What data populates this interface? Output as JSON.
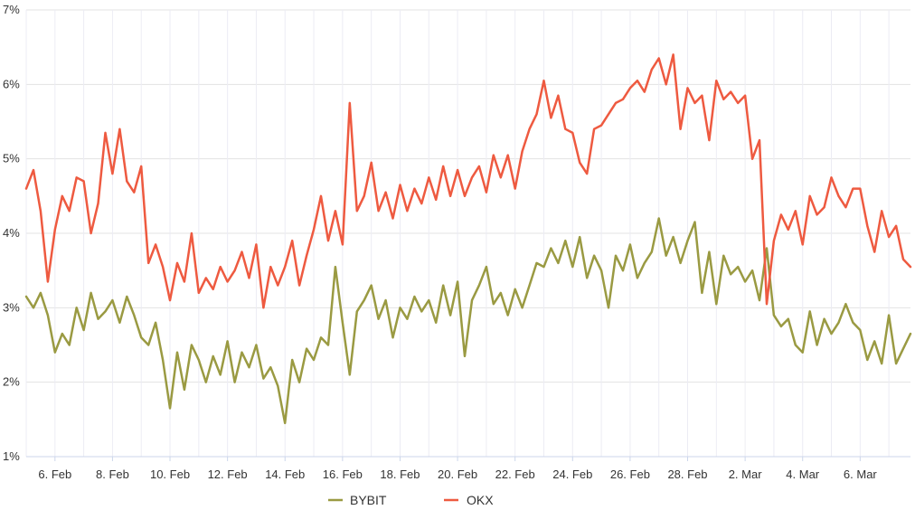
{
  "chart_data": {
    "type": "line",
    "title": "",
    "xlabel": "",
    "ylabel": "",
    "ylim": [
      1,
      7
    ],
    "y_ticks": [
      "1%",
      "2%",
      "3%",
      "4%",
      "5%",
      "6%",
      "7%"
    ],
    "x_ticks": [
      "6. Feb",
      "8. Feb",
      "10. Feb",
      "12. Feb",
      "14. Feb",
      "16. Feb",
      "18. Feb",
      "20. Feb",
      "22. Feb",
      "24. Feb",
      "26. Feb",
      "28. Feb",
      "2. Mar",
      "4. Mar",
      "6. Mar"
    ],
    "x_range": [
      "2025-02-05",
      "2025-03-07T18:00"
    ],
    "grid": "vertical and horizontal",
    "legend_position": "bottom-center",
    "series": [
      {
        "name": "BYBIT",
        "color": "#9a9a42",
        "points": [
          [
            "2025-02-05T00:00",
            3.15
          ],
          [
            "2025-02-05T06:00",
            3.0
          ],
          [
            "2025-02-05T12:00",
            3.2
          ],
          [
            "2025-02-05T18:00",
            2.9
          ],
          [
            "2025-02-06T00:00",
            2.4
          ],
          [
            "2025-02-06T06:00",
            2.65
          ],
          [
            "2025-02-06T12:00",
            2.5
          ],
          [
            "2025-02-06T18:00",
            3.0
          ],
          [
            "2025-02-07T00:00",
            2.7
          ],
          [
            "2025-02-07T06:00",
            3.2
          ],
          [
            "2025-02-07T12:00",
            2.85
          ],
          [
            "2025-02-07T18:00",
            2.95
          ],
          [
            "2025-02-08T00:00",
            3.1
          ],
          [
            "2025-02-08T06:00",
            2.8
          ],
          [
            "2025-02-08T12:00",
            3.15
          ],
          [
            "2025-02-08T18:00",
            2.9
          ],
          [
            "2025-02-09T00:00",
            2.6
          ],
          [
            "2025-02-09T06:00",
            2.5
          ],
          [
            "2025-02-09T12:00",
            2.8
          ],
          [
            "2025-02-09T18:00",
            2.3
          ],
          [
            "2025-02-10T00:00",
            1.65
          ],
          [
            "2025-02-10T06:00",
            2.4
          ],
          [
            "2025-02-10T12:00",
            1.9
          ],
          [
            "2025-02-10T18:00",
            2.5
          ],
          [
            "2025-02-11T00:00",
            2.3
          ],
          [
            "2025-02-11T06:00",
            2.0
          ],
          [
            "2025-02-11T12:00",
            2.35
          ],
          [
            "2025-02-11T18:00",
            2.1
          ],
          [
            "2025-02-12T00:00",
            2.55
          ],
          [
            "2025-02-12T06:00",
            2.0
          ],
          [
            "2025-02-12T12:00",
            2.4
          ],
          [
            "2025-02-12T18:00",
            2.2
          ],
          [
            "2025-02-13T00:00",
            2.5
          ],
          [
            "2025-02-13T06:00",
            2.05
          ],
          [
            "2025-02-13T12:00",
            2.2
          ],
          [
            "2025-02-13T18:00",
            1.95
          ],
          [
            "2025-02-14T00:00",
            1.45
          ],
          [
            "2025-02-14T06:00",
            2.3
          ],
          [
            "2025-02-14T12:00",
            2.0
          ],
          [
            "2025-02-14T18:00",
            2.45
          ],
          [
            "2025-02-15T00:00",
            2.3
          ],
          [
            "2025-02-15T06:00",
            2.6
          ],
          [
            "2025-02-15T12:00",
            2.5
          ],
          [
            "2025-02-15T18:00",
            3.55
          ],
          [
            "2025-02-16T00:00",
            2.8
          ],
          [
            "2025-02-16T06:00",
            2.1
          ],
          [
            "2025-02-16T12:00",
            2.95
          ],
          [
            "2025-02-16T18:00",
            3.1
          ],
          [
            "2025-02-17T00:00",
            3.3
          ],
          [
            "2025-02-17T06:00",
            2.85
          ],
          [
            "2025-02-17T12:00",
            3.1
          ],
          [
            "2025-02-17T18:00",
            2.6
          ],
          [
            "2025-02-18T00:00",
            3.0
          ],
          [
            "2025-02-18T06:00",
            2.85
          ],
          [
            "2025-02-18T12:00",
            3.15
          ],
          [
            "2025-02-18T18:00",
            2.95
          ],
          [
            "2025-02-19T00:00",
            3.1
          ],
          [
            "2025-02-19T06:00",
            2.8
          ],
          [
            "2025-02-19T12:00",
            3.3
          ],
          [
            "2025-02-19T18:00",
            2.9
          ],
          [
            "2025-02-20T00:00",
            3.35
          ],
          [
            "2025-02-20T06:00",
            2.35
          ],
          [
            "2025-02-20T12:00",
            3.1
          ],
          [
            "2025-02-20T18:00",
            3.3
          ],
          [
            "2025-02-21T00:00",
            3.55
          ],
          [
            "2025-02-21T06:00",
            3.05
          ],
          [
            "2025-02-21T12:00",
            3.2
          ],
          [
            "2025-02-21T18:00",
            2.9
          ],
          [
            "2025-02-22T00:00",
            3.25
          ],
          [
            "2025-02-22T06:00",
            3.0
          ],
          [
            "2025-02-22T12:00",
            3.3
          ],
          [
            "2025-02-22T18:00",
            3.6
          ],
          [
            "2025-02-23T00:00",
            3.55
          ],
          [
            "2025-02-23T06:00",
            3.8
          ],
          [
            "2025-02-23T12:00",
            3.6
          ],
          [
            "2025-02-23T18:00",
            3.9
          ],
          [
            "2025-02-24T00:00",
            3.55
          ],
          [
            "2025-02-24T06:00",
            3.95
          ],
          [
            "2025-02-24T12:00",
            3.4
          ],
          [
            "2025-02-24T18:00",
            3.7
          ],
          [
            "2025-02-25T00:00",
            3.5
          ],
          [
            "2025-02-25T06:00",
            3.0
          ],
          [
            "2025-02-25T12:00",
            3.7
          ],
          [
            "2025-02-25T18:00",
            3.5
          ],
          [
            "2025-02-26T00:00",
            3.85
          ],
          [
            "2025-02-26T06:00",
            3.4
          ],
          [
            "2025-02-26T12:00",
            3.6
          ],
          [
            "2025-02-26T18:00",
            3.75
          ],
          [
            "2025-02-27T00:00",
            4.2
          ],
          [
            "2025-02-27T06:00",
            3.7
          ],
          [
            "2025-02-27T12:00",
            3.95
          ],
          [
            "2025-02-27T18:00",
            3.6
          ],
          [
            "2025-02-28T00:00",
            3.9
          ],
          [
            "2025-02-28T06:00",
            4.15
          ],
          [
            "2025-02-28T12:00",
            3.2
          ],
          [
            "2025-02-28T18:00",
            3.75
          ],
          [
            "2025-03-01T00:00",
            3.05
          ],
          [
            "2025-03-01T06:00",
            3.7
          ],
          [
            "2025-03-01T12:00",
            3.45
          ],
          [
            "2025-03-01T18:00",
            3.55
          ],
          [
            "2025-03-02T00:00",
            3.35
          ],
          [
            "2025-03-02T06:00",
            3.5
          ],
          [
            "2025-03-02T12:00",
            3.1
          ],
          [
            "2025-03-02T18:00",
            3.8
          ],
          [
            "2025-03-03T00:00",
            2.9
          ],
          [
            "2025-03-03T06:00",
            2.75
          ],
          [
            "2025-03-03T12:00",
            2.85
          ],
          [
            "2025-03-03T18:00",
            2.5
          ],
          [
            "2025-03-04T00:00",
            2.4
          ],
          [
            "2025-03-04T06:00",
            2.95
          ],
          [
            "2025-03-04T12:00",
            2.5
          ],
          [
            "2025-03-04T18:00",
            2.85
          ],
          [
            "2025-03-05T00:00",
            2.65
          ],
          [
            "2025-03-05T06:00",
            2.8
          ],
          [
            "2025-03-05T12:00",
            3.05
          ],
          [
            "2025-03-05T18:00",
            2.8
          ],
          [
            "2025-03-06T00:00",
            2.7
          ],
          [
            "2025-03-06T06:00",
            2.3
          ],
          [
            "2025-03-06T12:00",
            2.55
          ],
          [
            "2025-03-06T18:00",
            2.25
          ],
          [
            "2025-03-07T00:00",
            2.9
          ],
          [
            "2025-03-07T06:00",
            2.25
          ],
          [
            "2025-03-07T12:00",
            2.45
          ],
          [
            "2025-03-07T18:00",
            2.65
          ]
        ]
      },
      {
        "name": "OKX",
        "color": "#ee5a40",
        "points": [
          [
            "2025-02-05T00:00",
            4.6
          ],
          [
            "2025-02-05T06:00",
            4.85
          ],
          [
            "2025-02-05T12:00",
            4.3
          ],
          [
            "2025-02-05T18:00",
            3.35
          ],
          [
            "2025-02-06T00:00",
            4.05
          ],
          [
            "2025-02-06T06:00",
            4.5
          ],
          [
            "2025-02-06T12:00",
            4.3
          ],
          [
            "2025-02-06T18:00",
            4.75
          ],
          [
            "2025-02-07T00:00",
            4.7
          ],
          [
            "2025-02-07T06:00",
            4.0
          ],
          [
            "2025-02-07T12:00",
            4.4
          ],
          [
            "2025-02-07T18:00",
            5.35
          ],
          [
            "2025-02-08T00:00",
            4.8
          ],
          [
            "2025-02-08T06:00",
            5.4
          ],
          [
            "2025-02-08T12:00",
            4.7
          ],
          [
            "2025-02-08T18:00",
            4.55
          ],
          [
            "2025-02-09T00:00",
            4.9
          ],
          [
            "2025-02-09T06:00",
            3.6
          ],
          [
            "2025-02-09T12:00",
            3.85
          ],
          [
            "2025-02-09T18:00",
            3.55
          ],
          [
            "2025-02-10T00:00",
            3.1
          ],
          [
            "2025-02-10T06:00",
            3.6
          ],
          [
            "2025-02-10T12:00",
            3.35
          ],
          [
            "2025-02-10T18:00",
            4.0
          ],
          [
            "2025-02-11T00:00",
            3.2
          ],
          [
            "2025-02-11T06:00",
            3.4
          ],
          [
            "2025-02-11T12:00",
            3.25
          ],
          [
            "2025-02-11T18:00",
            3.55
          ],
          [
            "2025-02-12T00:00",
            3.35
          ],
          [
            "2025-02-12T06:00",
            3.5
          ],
          [
            "2025-02-12T12:00",
            3.75
          ],
          [
            "2025-02-12T18:00",
            3.4
          ],
          [
            "2025-02-13T00:00",
            3.85
          ],
          [
            "2025-02-13T06:00",
            3.0
          ],
          [
            "2025-02-13T12:00",
            3.55
          ],
          [
            "2025-02-13T18:00",
            3.3
          ],
          [
            "2025-02-14T00:00",
            3.55
          ],
          [
            "2025-02-14T06:00",
            3.9
          ],
          [
            "2025-02-14T12:00",
            3.3
          ],
          [
            "2025-02-14T18:00",
            3.7
          ],
          [
            "2025-02-15T00:00",
            4.05
          ],
          [
            "2025-02-15T06:00",
            4.5
          ],
          [
            "2025-02-15T12:00",
            3.9
          ],
          [
            "2025-02-15T18:00",
            4.3
          ],
          [
            "2025-02-16T00:00",
            3.85
          ],
          [
            "2025-02-16T06:00",
            5.75
          ],
          [
            "2025-02-16T12:00",
            4.3
          ],
          [
            "2025-02-16T18:00",
            4.5
          ],
          [
            "2025-02-17T00:00",
            4.95
          ],
          [
            "2025-02-17T06:00",
            4.3
          ],
          [
            "2025-02-17T12:00",
            4.55
          ],
          [
            "2025-02-17T18:00",
            4.2
          ],
          [
            "2025-02-18T00:00",
            4.65
          ],
          [
            "2025-02-18T06:00",
            4.3
          ],
          [
            "2025-02-18T12:00",
            4.6
          ],
          [
            "2025-02-18T18:00",
            4.4
          ],
          [
            "2025-02-19T00:00",
            4.75
          ],
          [
            "2025-02-19T06:00",
            4.45
          ],
          [
            "2025-02-19T12:00",
            4.9
          ],
          [
            "2025-02-19T18:00",
            4.5
          ],
          [
            "2025-02-20T00:00",
            4.85
          ],
          [
            "2025-02-20T06:00",
            4.5
          ],
          [
            "2025-02-20T12:00",
            4.75
          ],
          [
            "2025-02-20T18:00",
            4.9
          ],
          [
            "2025-02-21T00:00",
            4.55
          ],
          [
            "2025-02-21T06:00",
            5.05
          ],
          [
            "2025-02-21T12:00",
            4.75
          ],
          [
            "2025-02-21T18:00",
            5.05
          ],
          [
            "2025-02-22T00:00",
            4.6
          ],
          [
            "2025-02-22T06:00",
            5.1
          ],
          [
            "2025-02-22T12:00",
            5.4
          ],
          [
            "2025-02-22T18:00",
            5.6
          ],
          [
            "2025-02-23T00:00",
            6.05
          ],
          [
            "2025-02-23T06:00",
            5.55
          ],
          [
            "2025-02-23T12:00",
            5.85
          ],
          [
            "2025-02-23T18:00",
            5.4
          ],
          [
            "2025-02-24T00:00",
            5.35
          ],
          [
            "2025-02-24T06:00",
            4.95
          ],
          [
            "2025-02-24T12:00",
            4.8
          ],
          [
            "2025-02-24T18:00",
            5.4
          ],
          [
            "2025-02-25T00:00",
            5.45
          ],
          [
            "2025-02-25T06:00",
            5.6
          ],
          [
            "2025-02-25T12:00",
            5.75
          ],
          [
            "2025-02-25T18:00",
            5.8
          ],
          [
            "2025-02-26T00:00",
            5.95
          ],
          [
            "2025-02-26T06:00",
            6.05
          ],
          [
            "2025-02-26T12:00",
            5.9
          ],
          [
            "2025-02-26T18:00",
            6.2
          ],
          [
            "2025-02-27T00:00",
            6.35
          ],
          [
            "2025-02-27T06:00",
            6.0
          ],
          [
            "2025-02-27T12:00",
            6.4
          ],
          [
            "2025-02-27T18:00",
            5.4
          ],
          [
            "2025-02-28T00:00",
            5.95
          ],
          [
            "2025-02-28T06:00",
            5.75
          ],
          [
            "2025-02-28T12:00",
            5.85
          ],
          [
            "2025-02-28T18:00",
            5.25
          ],
          [
            "2025-03-01T00:00",
            6.05
          ],
          [
            "2025-03-01T06:00",
            5.8
          ],
          [
            "2025-03-01T12:00",
            5.9
          ],
          [
            "2025-03-01T18:00",
            5.75
          ],
          [
            "2025-03-02T00:00",
            5.85
          ],
          [
            "2025-03-02T06:00",
            5.0
          ],
          [
            "2025-03-02T12:00",
            5.25
          ],
          [
            "2025-03-02T18:00",
            3.05
          ],
          [
            "2025-03-03T00:00",
            3.9
          ],
          [
            "2025-03-03T06:00",
            4.25
          ],
          [
            "2025-03-03T12:00",
            4.05
          ],
          [
            "2025-03-03T18:00",
            4.3
          ],
          [
            "2025-03-04T00:00",
            3.85
          ],
          [
            "2025-03-04T06:00",
            4.5
          ],
          [
            "2025-03-04T12:00",
            4.25
          ],
          [
            "2025-03-04T18:00",
            4.35
          ],
          [
            "2025-03-05T00:00",
            4.75
          ],
          [
            "2025-03-05T06:00",
            4.5
          ],
          [
            "2025-03-05T12:00",
            4.35
          ],
          [
            "2025-03-05T18:00",
            4.6
          ],
          [
            "2025-03-06T00:00",
            4.6
          ],
          [
            "2025-03-06T06:00",
            4.1
          ],
          [
            "2025-03-06T12:00",
            3.75
          ],
          [
            "2025-03-06T18:00",
            4.3
          ],
          [
            "2025-03-07T00:00",
            3.95
          ],
          [
            "2025-03-07T06:00",
            4.1
          ],
          [
            "2025-03-07T12:00",
            3.65
          ],
          [
            "2025-03-07T18:00",
            3.55
          ]
        ]
      }
    ]
  }
}
